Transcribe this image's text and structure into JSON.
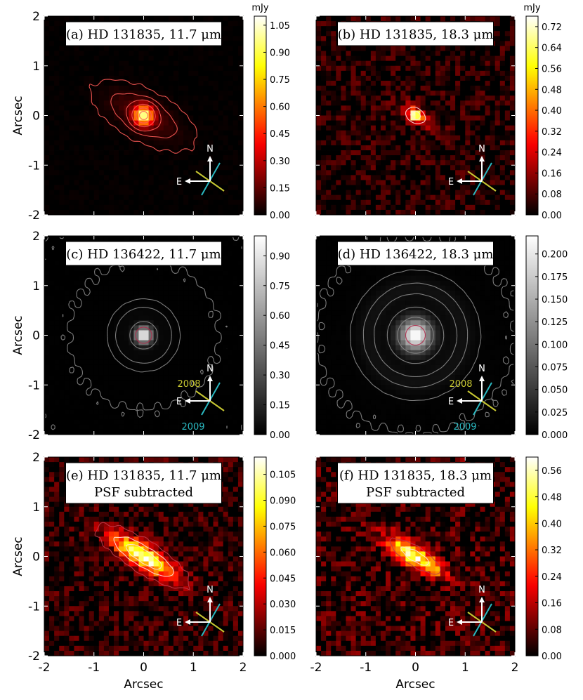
{
  "figure": {
    "panels": [
      {
        "id": "a",
        "title": "(a) HD 131835, 11.7 μm",
        "subtitle": "",
        "cmap": "hot",
        "colorbar_unit": "mJy",
        "colorbar_ticks": [
          "0.00",
          "0.15",
          "0.30",
          "0.45",
          "0.60",
          "0.75",
          "0.90",
          "1.05"
        ],
        "compass": {
          "north": "N",
          "east": "E",
          "label_a": "",
          "label_b": ""
        },
        "ylabel": "Arcsec",
        "xlabel": ""
      },
      {
        "id": "b",
        "title": "(b) HD 131835, 18.3 μm",
        "subtitle": "",
        "cmap": "hot",
        "colorbar_unit": "mJy",
        "colorbar_ticks": [
          "0.00",
          "0.08",
          "0.16",
          "0.24",
          "0.32",
          "0.40",
          "0.48",
          "0.56",
          "0.64",
          "0.72"
        ],
        "compass": {
          "north": "N",
          "east": "E",
          "label_a": "",
          "label_b": ""
        },
        "ylabel": "",
        "xlabel": ""
      },
      {
        "id": "c",
        "title": "(c) HD 136422, 11.7 μm",
        "subtitle": "",
        "cmap": "gray",
        "colorbar_unit": "",
        "colorbar_ticks": [
          "0.00",
          "0.15",
          "0.30",
          "0.45",
          "0.60",
          "0.75",
          "0.90"
        ],
        "compass": {
          "north": "N",
          "east": "E",
          "label_a": "2008",
          "label_b": "2009"
        },
        "ylabel": "Arcsec",
        "xlabel": ""
      },
      {
        "id": "d",
        "title": "(d) HD 136422, 18.3 μm",
        "subtitle": "",
        "cmap": "gray",
        "colorbar_unit": "",
        "colorbar_ticks": [
          "0.000",
          "0.025",
          "0.050",
          "0.075",
          "0.100",
          "0.125",
          "0.150",
          "0.175",
          "0.200"
        ],
        "compass": {
          "north": "N",
          "east": "E",
          "label_a": "2008",
          "label_b": "2009"
        },
        "ylabel": "",
        "xlabel": ""
      },
      {
        "id": "e",
        "title": "(e) HD 131835, 11.7 μm",
        "subtitle": "PSF subtracted",
        "cmap": "hot",
        "colorbar_unit": "",
        "colorbar_ticks": [
          "0.000",
          "0.015",
          "0.030",
          "0.045",
          "0.060",
          "0.075",
          "0.090",
          "0.105"
        ],
        "compass": {
          "north": "N",
          "east": "E",
          "label_a": "",
          "label_b": ""
        },
        "ylabel": "Arcsec",
        "xlabel": "Arcsec"
      },
      {
        "id": "f",
        "title": "(f) HD 131835, 18.3 μm",
        "subtitle": "PSF subtracted",
        "cmap": "hot",
        "colorbar_unit": "",
        "colorbar_ticks": [
          "0.00",
          "0.08",
          "0.16",
          "0.24",
          "0.32",
          "0.40",
          "0.48",
          "0.56"
        ],
        "compass": {
          "north": "N",
          "east": "E",
          "label_a": "",
          "label_b": ""
        },
        "ylabel": "",
        "xlabel": "Arcsec"
      }
    ]
  },
  "chart_data": [
    {
      "type": "heatmap",
      "panel": "a",
      "title": "(a) HD 131835, 11.7 μm",
      "xlabel": "",
      "ylabel": "Arcsec",
      "xlim": [
        -2,
        2
      ],
      "ylim": [
        -2,
        2
      ],
      "xticks": [],
      "yticks": [
        "-2",
        "-1",
        "0",
        "1",
        "2"
      ],
      "colorbar": {
        "unit": "mJy",
        "range": [
          0,
          1.1
        ]
      },
      "source": {
        "kind": "disk",
        "peak": 1.1,
        "core_sigma": 0.13,
        "halo_frac": 0.12,
        "halo_major": 0.95,
        "halo_minor": 0.42,
        "pa_deg": 62,
        "noise": 0.012,
        "seed": 11
      },
      "contour_levels": [
        0.01,
        0.05,
        0.12,
        0.3,
        0.6,
        0.9
      ],
      "contour_color": "#ff5a55"
    },
    {
      "type": "heatmap",
      "panel": "b",
      "title": "(b) HD 131835, 18.3 μm",
      "xlabel": "",
      "ylabel": "",
      "xlim": [
        -2,
        2
      ],
      "ylim": [
        -2,
        2
      ],
      "xticks": [],
      "yticks": [],
      "colorbar": {
        "unit": "mJy",
        "range": [
          0,
          0.76
        ]
      },
      "source": {
        "kind": "disk",
        "peak": 0.76,
        "core_sigma": 0.09,
        "halo_frac": 0.32,
        "halo_major": 0.55,
        "halo_minor": 0.2,
        "pa_deg": 60,
        "noise": 0.09,
        "seed": 23
      },
      "contour_levels": [
        0.22,
        0.5
      ],
      "contour_color": "#ffdede"
    },
    {
      "type": "heatmap",
      "panel": "c",
      "title": "(c) HD 136422, 11.7 μm",
      "xlabel": "",
      "ylabel": "Arcsec",
      "xlim": [
        -2,
        2
      ],
      "ylim": [
        -2,
        2
      ],
      "xticks": [],
      "yticks": [
        "-2",
        "-1",
        "0",
        "1",
        "2"
      ],
      "colorbar": {
        "unit": "",
        "range": [
          0,
          1.0
        ]
      },
      "source": {
        "kind": "psf",
        "peak": 1.0,
        "core_sigma": 0.12,
        "halo_frac": 0.0,
        "halo_major": 0.8,
        "halo_minor": 0.8,
        "pa_deg": 0,
        "noise": 0.0012,
        "seed": 5,
        "ring_amp": 0.02,
        "ring_r": 0.48,
        "ring_w": 0.12
      },
      "contour_levels": [
        0.0006,
        0.002,
        0.006,
        0.02,
        0.08,
        0.4
      ],
      "contour_color": "#8a8a8a",
      "inner_contour_color": "#b02a4a"
    },
    {
      "type": "heatmap",
      "panel": "d",
      "title": "(d) HD 136422, 18.3 μm",
      "xlabel": "",
      "ylabel": "",
      "xlim": [
        -2,
        2
      ],
      "ylim": [
        -2,
        2
      ],
      "xticks": [],
      "yticks": [],
      "colorbar": {
        "unit": "",
        "range": [
          0,
          0.22
        ]
      },
      "source": {
        "kind": "psf",
        "peak": 0.22,
        "core_sigma": 0.22,
        "halo_frac": 0.0,
        "halo_major": 1.0,
        "halo_minor": 1.0,
        "pa_deg": 0,
        "noise": 0.0006,
        "seed": 9,
        "ring_amp": 0.012,
        "ring_r": 0.95,
        "ring_w": 0.18
      },
      "contour_levels": [
        0.0008,
        0.003,
        0.012,
        0.06,
        0.15
      ],
      "contour_color": "#8a8a8a",
      "inner_contour_color": "#b02a4a"
    },
    {
      "type": "heatmap",
      "panel": "e",
      "title": "(e) HD 131835, 11.7 μm",
      "xlabel": "Arcsec",
      "ylabel": "Arcsec",
      "xlim": [
        -2,
        2
      ],
      "ylim": [
        -2,
        2
      ],
      "xticks": [
        "-2",
        "-1",
        "0",
        "1",
        "2"
      ],
      "yticks": [
        "-2",
        "-1",
        "0",
        "1",
        "2"
      ],
      "colorbar": {
        "unit": "",
        "range": [
          0,
          0.115
        ]
      },
      "source": {
        "kind": "residual",
        "peak": 0.105,
        "core_sigma": 0.0,
        "halo_frac": 1.0,
        "halo_major": 0.85,
        "halo_minor": 0.26,
        "pa_deg": 58,
        "noise": 0.016,
        "seed": 31
      },
      "contour_levels": [
        0.012,
        0.045,
        0.075
      ],
      "contour_color": "#ffe0e0",
      "outer_contour_color": "#c03a4a"
    },
    {
      "type": "heatmap",
      "panel": "f",
      "title": "(f) HD 131835, 18.3 μm",
      "xlabel": "Arcsec",
      "ylabel": "",
      "xlim": [
        -2,
        2
      ],
      "ylim": [
        -2,
        2
      ],
      "xticks": [
        "-2",
        "-1",
        "0",
        "1",
        "2"
      ],
      "yticks": [],
      "colorbar": {
        "unit": "",
        "range": [
          0,
          0.6
        ]
      },
      "source": {
        "kind": "residual",
        "peak": 0.5,
        "core_sigma": 0.0,
        "halo_frac": 1.0,
        "halo_major": 0.75,
        "halo_minor": 0.25,
        "pa_deg": 58,
        "noise": 0.1,
        "seed": 47
      },
      "contour_levels": [
        0.22,
        0.4
      ],
      "contour_color": "#ffe0e0",
      "outer_contour_color": "#c03a4a"
    }
  ]
}
